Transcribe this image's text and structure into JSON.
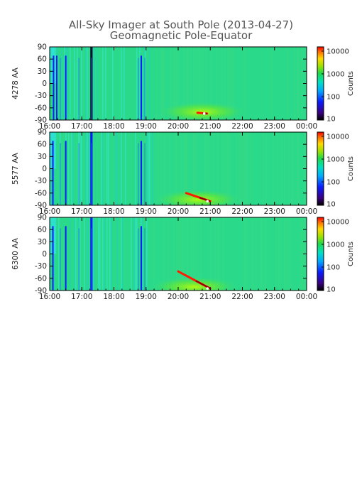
{
  "title": "All-Sky Imager at South Pole (2013-04-27)",
  "subtitle": "Geomagnetic Pole-Equator",
  "colors": {
    "background_field": "#2bd98a",
    "low": "#0a1cff",
    "mid": "#00d7ff",
    "high": "#ff1a00",
    "peak": "#ffffff"
  },
  "chart_data": [
    {
      "type": "heatmap",
      "ylabel": "4278 AA",
      "x_ticks": [
        "16:00",
        "17:00",
        "18:00",
        "19:00",
        "20:00",
        "21:00",
        "22:00",
        "23:00",
        "00:00"
      ],
      "y_ticks": [
        "90",
        "60",
        "30",
        "0",
        "-30",
        "-60",
        "-90"
      ],
      "ylim": [
        -90,
        90
      ],
      "colorbar": {
        "ticks": [
          "10000",
          "1000",
          "100",
          "10"
        ],
        "label": "Counts",
        "scale": "log",
        "range": [
          10,
          20000
        ]
      },
      "features": {
        "dark_stripes_hours": [
          16.12,
          16.22,
          16.5,
          17.3,
          18.85
        ],
        "emission_track": {
          "start_hour": 20.6,
          "end_hour": 20.9,
          "start_lat": -72,
          "end_lat": -74
        }
      }
    },
    {
      "type": "heatmap",
      "ylabel": "5577 AA",
      "x_ticks": [
        "16:00",
        "17:00",
        "18:00",
        "19:00",
        "20:00",
        "21:00",
        "22:00",
        "23:00",
        "00:00"
      ],
      "y_ticks": [
        "90",
        "60",
        "30",
        "0",
        "-30",
        "-60",
        "-90"
      ],
      "ylim": [
        -90,
        90
      ],
      "colorbar": {
        "ticks": [
          "10000",
          "1000",
          "100",
          "10"
        ],
        "label": "Counts",
        "scale": "log",
        "range": [
          10,
          20000
        ]
      },
      "features": {
        "dark_stripes_hours": [
          16.1,
          16.5,
          17.3,
          18.85
        ],
        "emission_track": {
          "start_hour": 20.25,
          "end_hour": 21.0,
          "start_lat": -60,
          "end_lat": -80
        }
      }
    },
    {
      "type": "heatmap",
      "ylabel": "6300 AA",
      "x_ticks": [
        "16:00",
        "17:00",
        "18:00",
        "19:00",
        "20:00",
        "21:00",
        "22:00",
        "23:00",
        "00:00"
      ],
      "y_ticks": [
        "90",
        "60",
        "30",
        "0",
        "-30",
        "-60",
        "-90"
      ],
      "ylim": [
        -90,
        90
      ],
      "colorbar": {
        "ticks": [
          "10000",
          "1000",
          "100",
          "10"
        ],
        "label": "Counts",
        "scale": "log",
        "range": [
          10,
          20000
        ]
      },
      "features": {
        "dark_stripes_hours": [
          16.1,
          16.5,
          17.3,
          18.85
        ],
        "emission_track": {
          "start_hour": 20.0,
          "end_hour": 21.0,
          "start_lat": -43,
          "end_lat": -85
        }
      }
    }
  ]
}
